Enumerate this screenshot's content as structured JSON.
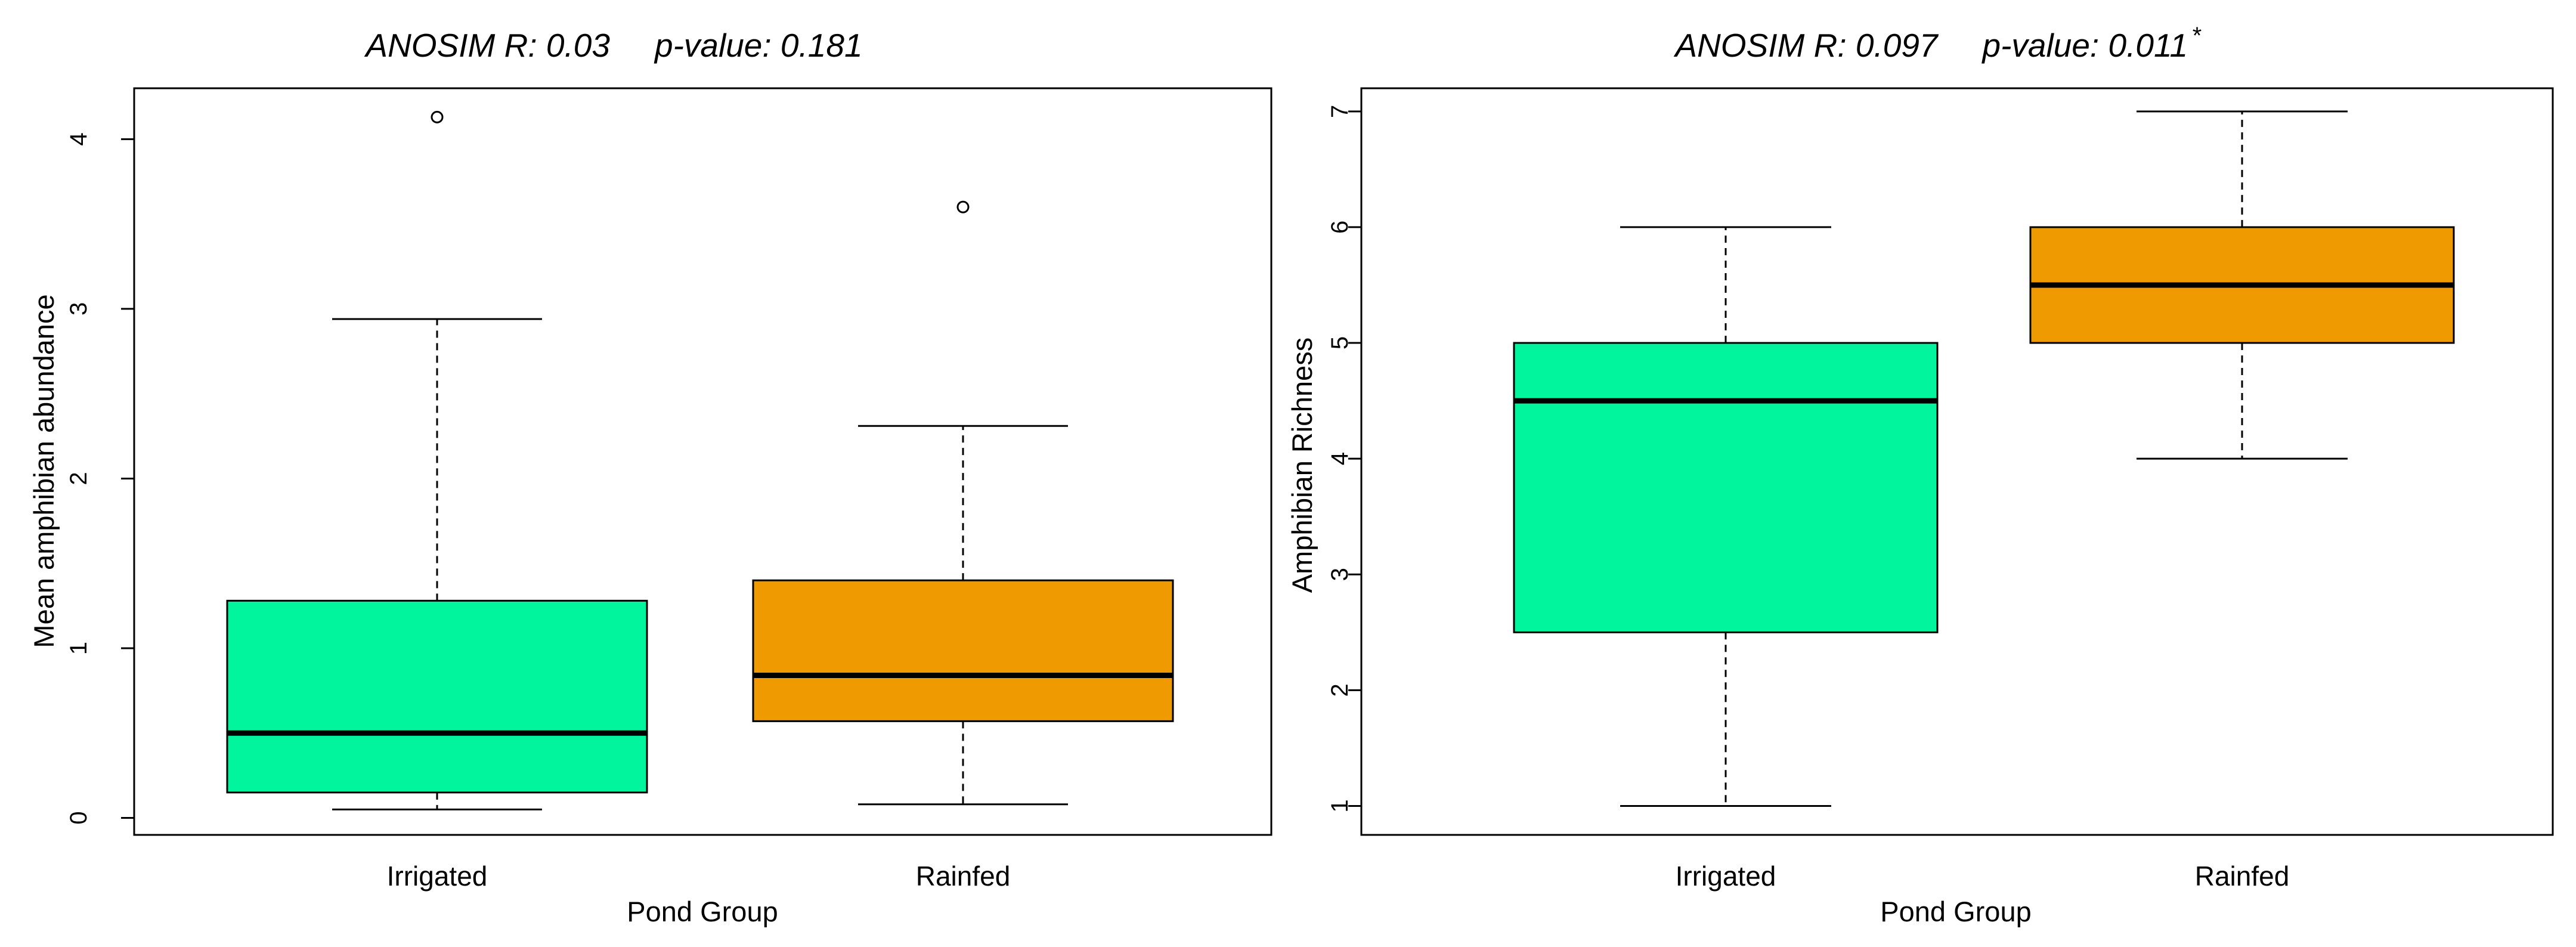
{
  "chart_data": [
    {
      "type": "boxplot",
      "title": {
        "r_text": "ANOSIM R: 0.03",
        "p_text": "p-value: 0.181",
        "significance": ""
      },
      "xlabel": "Pond Group",
      "ylabel": "Mean amphibian abundance",
      "ylim": [
        -0.1,
        4.3
      ],
      "yticks": [
        0,
        1,
        2,
        3,
        4
      ],
      "categories": [
        "Irrigated",
        "Rainfed"
      ],
      "boxes": [
        {
          "name": "Irrigated",
          "color": "#00F59C",
          "whisker_low": 0.05,
          "q1": 0.15,
          "median": 0.5,
          "q3": 1.28,
          "whisker_high": 2.94,
          "outliers": [
            4.13
          ]
        },
        {
          "name": "Rainfed",
          "color": "#EE9A00",
          "whisker_low": 0.08,
          "q1": 0.57,
          "median": 0.84,
          "q3": 1.4,
          "whisker_high": 2.31,
          "outliers": [
            3.6
          ]
        }
      ]
    },
    {
      "type": "boxplot",
      "title": {
        "r_text": "ANOSIM R: 0.097",
        "p_text": "p-value: 0.011",
        "significance": "*"
      },
      "xlabel": "Pond Group",
      "ylabel": "Amphibian Richness",
      "ylim": [
        0.75,
        7.2
      ],
      "yticks": [
        1,
        2,
        3,
        4,
        5,
        6,
        7
      ],
      "categories": [
        "Irrigated",
        "Rainfed"
      ],
      "boxes": [
        {
          "name": "Irrigated",
          "color": "#00F59C",
          "whisker_low": 1,
          "q1": 2.5,
          "median": 4.5,
          "q3": 5,
          "whisker_high": 6,
          "outliers": []
        },
        {
          "name": "Rainfed",
          "color": "#EE9A00",
          "whisker_low": 4,
          "q1": 5,
          "median": 5.5,
          "q3": 6,
          "whisker_high": 7,
          "outliers": []
        }
      ]
    }
  ]
}
